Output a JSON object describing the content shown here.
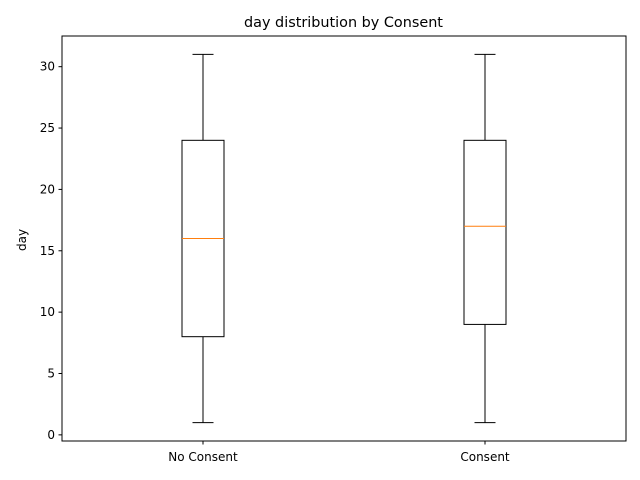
{
  "chart_data": {
    "type": "box",
    "title": "day distribution by Consent",
    "xlabel": "",
    "ylabel": "day",
    "ylim": [
      -0.5,
      32.5
    ],
    "yticks": [
      0,
      5,
      10,
      15,
      20,
      25,
      30
    ],
    "categories": [
      "No Consent",
      "Consent"
    ],
    "boxes": [
      {
        "category": "No Consent",
        "whisker_low": 1,
        "q1": 8,
        "median": 16,
        "q3": 24,
        "whisker_high": 31
      },
      {
        "category": "Consent",
        "whisker_low": 1,
        "q1": 9,
        "median": 17,
        "q3": 24,
        "whisker_high": 31
      }
    ],
    "grid": false,
    "colors": {
      "box": "#000000",
      "median": "#ff7f0e",
      "whisker": "#000000"
    }
  }
}
